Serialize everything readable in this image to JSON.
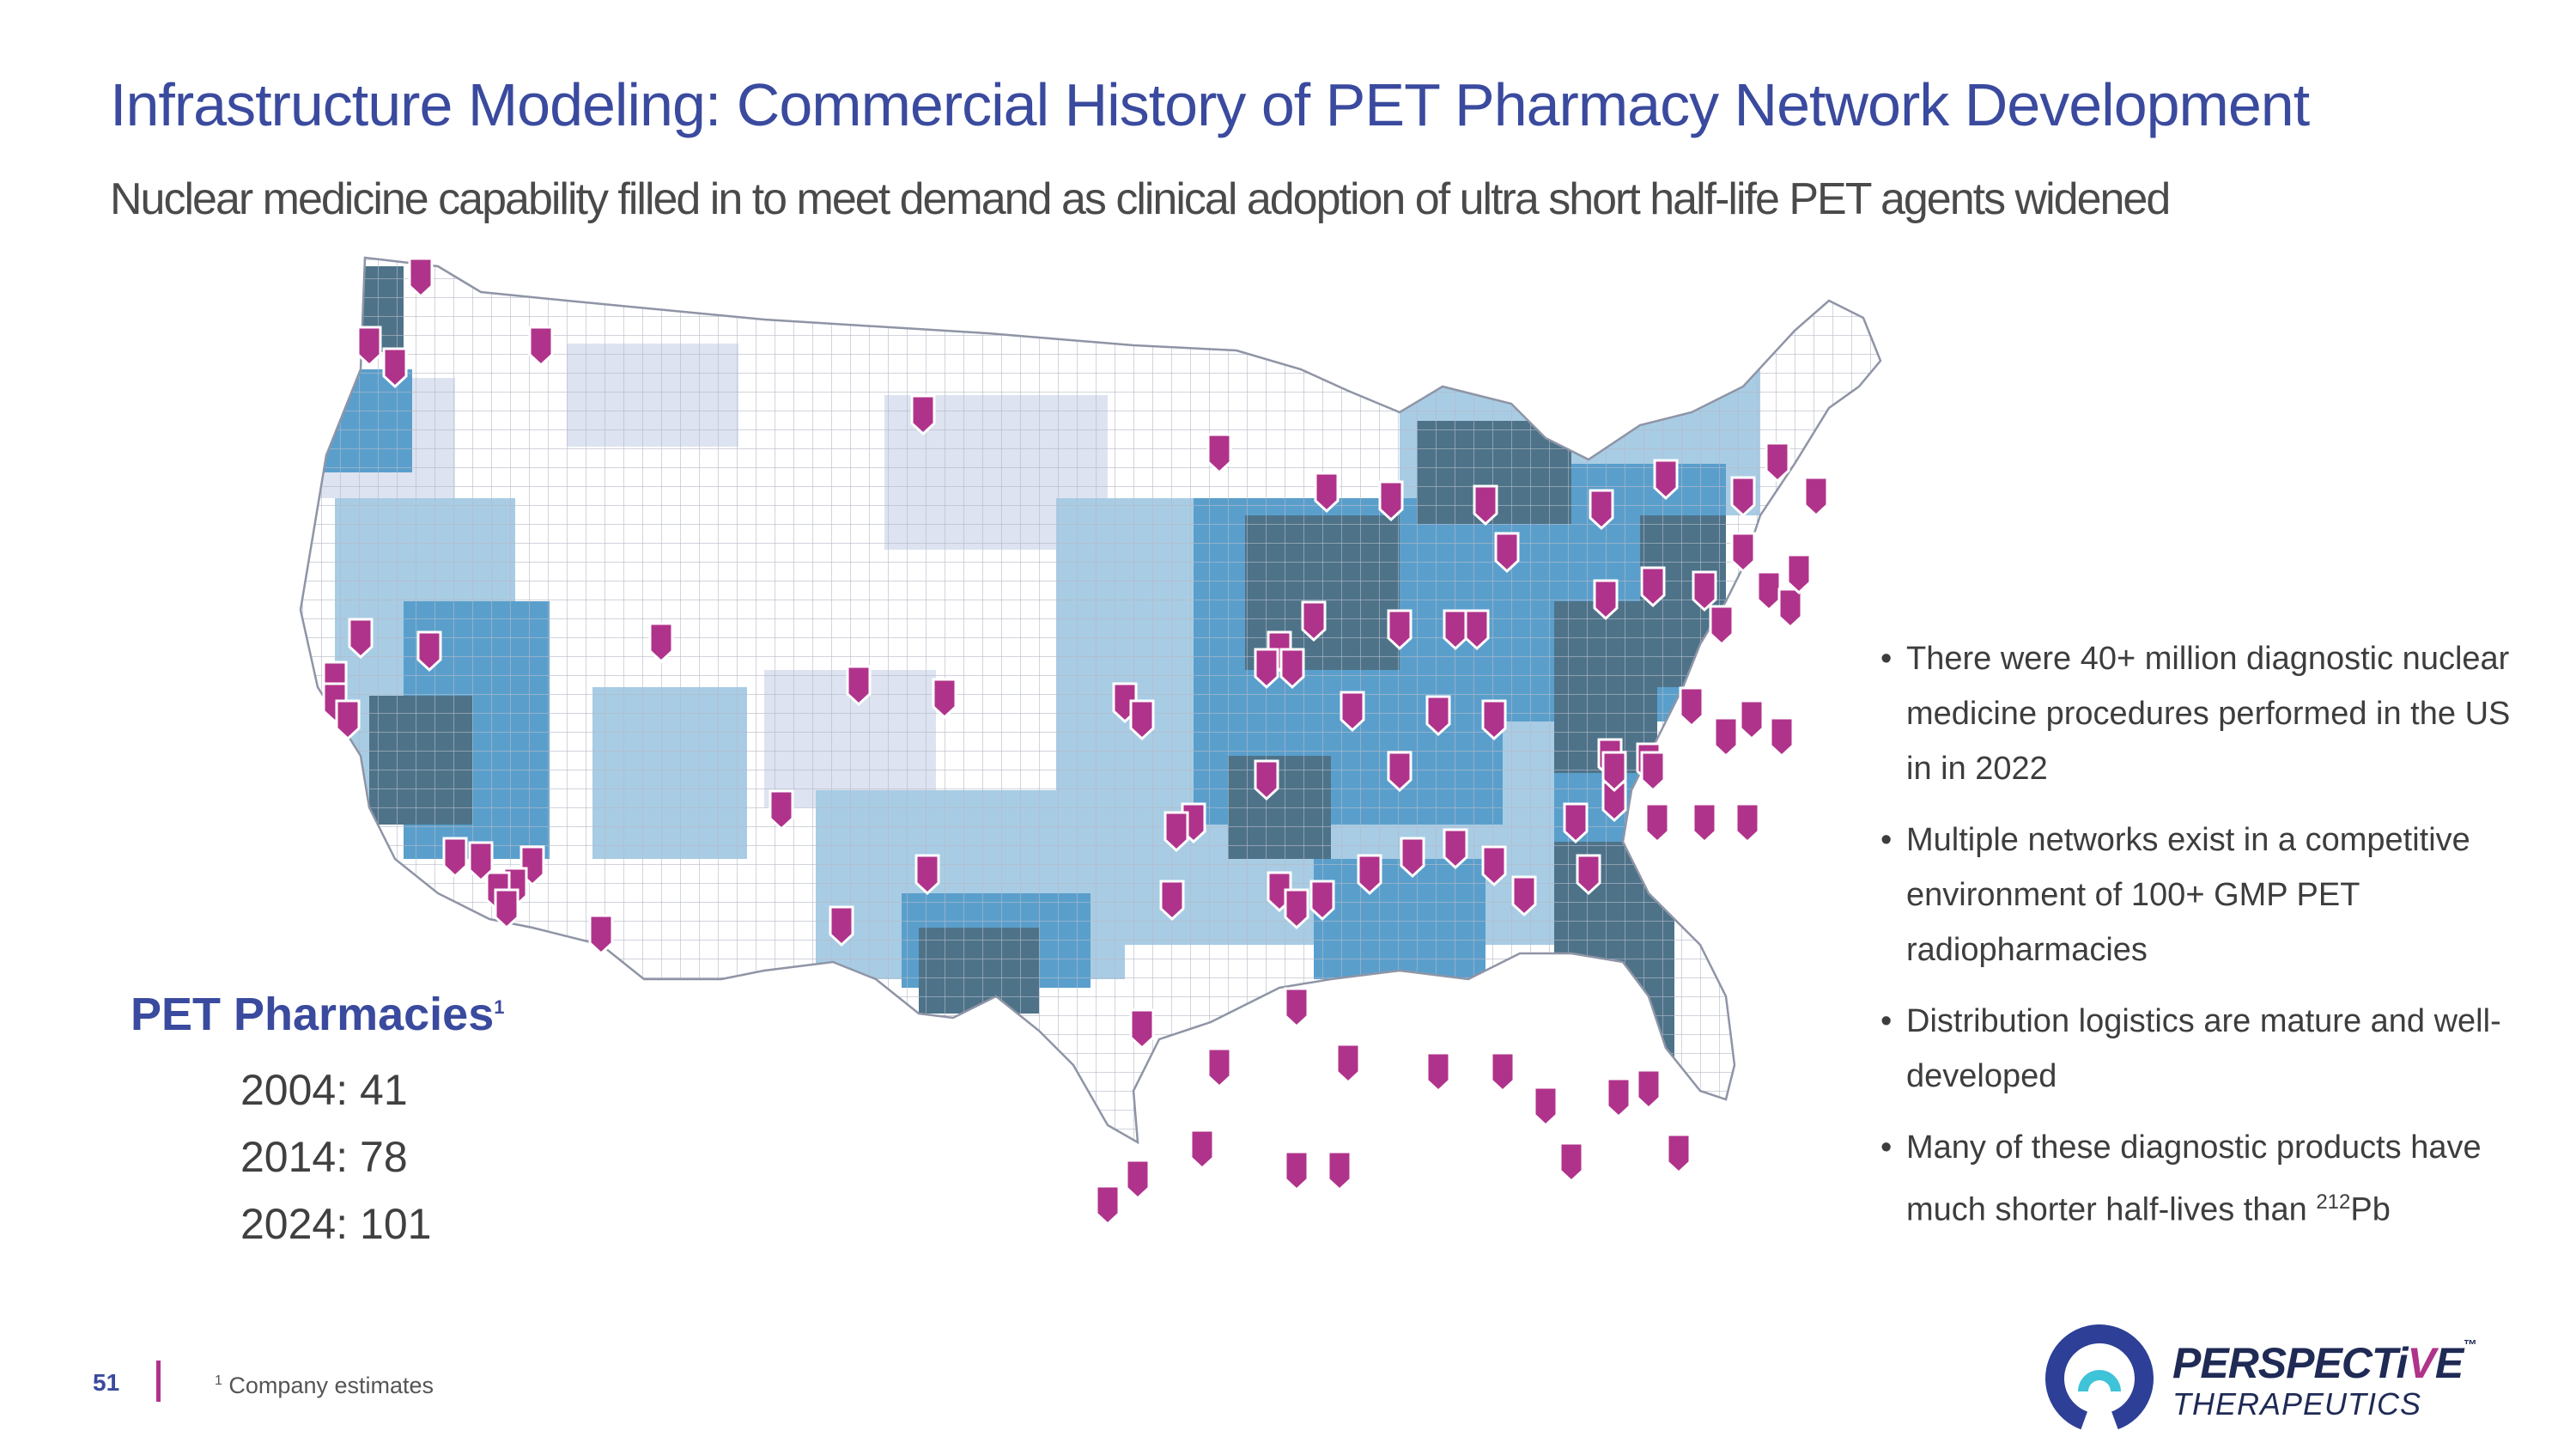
{
  "header": {
    "title": "Infrastructure Modeling: Commercial History of PET Pharmacy Network Development",
    "subtitle": "Nuclear medicine capability filled in to meet demand as clinical adoption of ultra short half-life PET agents widened"
  },
  "pharmacies": {
    "title": "PET Pharmacies",
    "title_sup": "1",
    "years": [
      {
        "label": "2004: 41"
      },
      {
        "label": "2014: 78"
      },
      {
        "label": "2024: 101"
      }
    ]
  },
  "bullets": [
    {
      "text": "There were 40+ million diagnostic nuclear medicine procedures performed in the US in in 2022"
    },
    {
      "text": "Multiple networks exist in a competitive environment of 100+ GMP PET radiopharmacies"
    },
    {
      "text": "Distribution logistics are mature and well-developed"
    },
    {
      "text_before": "Many of these diagnostic products have much shorter half-lives than ",
      "sup": "212",
      "text_after": "Pb"
    }
  ],
  "footer": {
    "page_number": "51",
    "footnote_sup": "1",
    "footnote_text": "Company estimates"
  },
  "logo": {
    "name_part1": "PERSPECTi",
    "name_part2": "V",
    "name_part3": "E",
    "trademark": "™",
    "subtitle": "THERAPEUTICS"
  },
  "colors": {
    "title": "#3a4a9e",
    "marker": "#b0338b",
    "county_dark": "#4e7389",
    "county_mid": "#5a9fcc",
    "county_light": "#a8cce4",
    "county_pale": "#dde3f0",
    "logo_ring": "#2d3f96",
    "logo_teal": "#3ec3d8"
  },
  "map": {
    "icon": "us-county-map-icon",
    "marker_icon": "pharmacy-marker-icon"
  }
}
